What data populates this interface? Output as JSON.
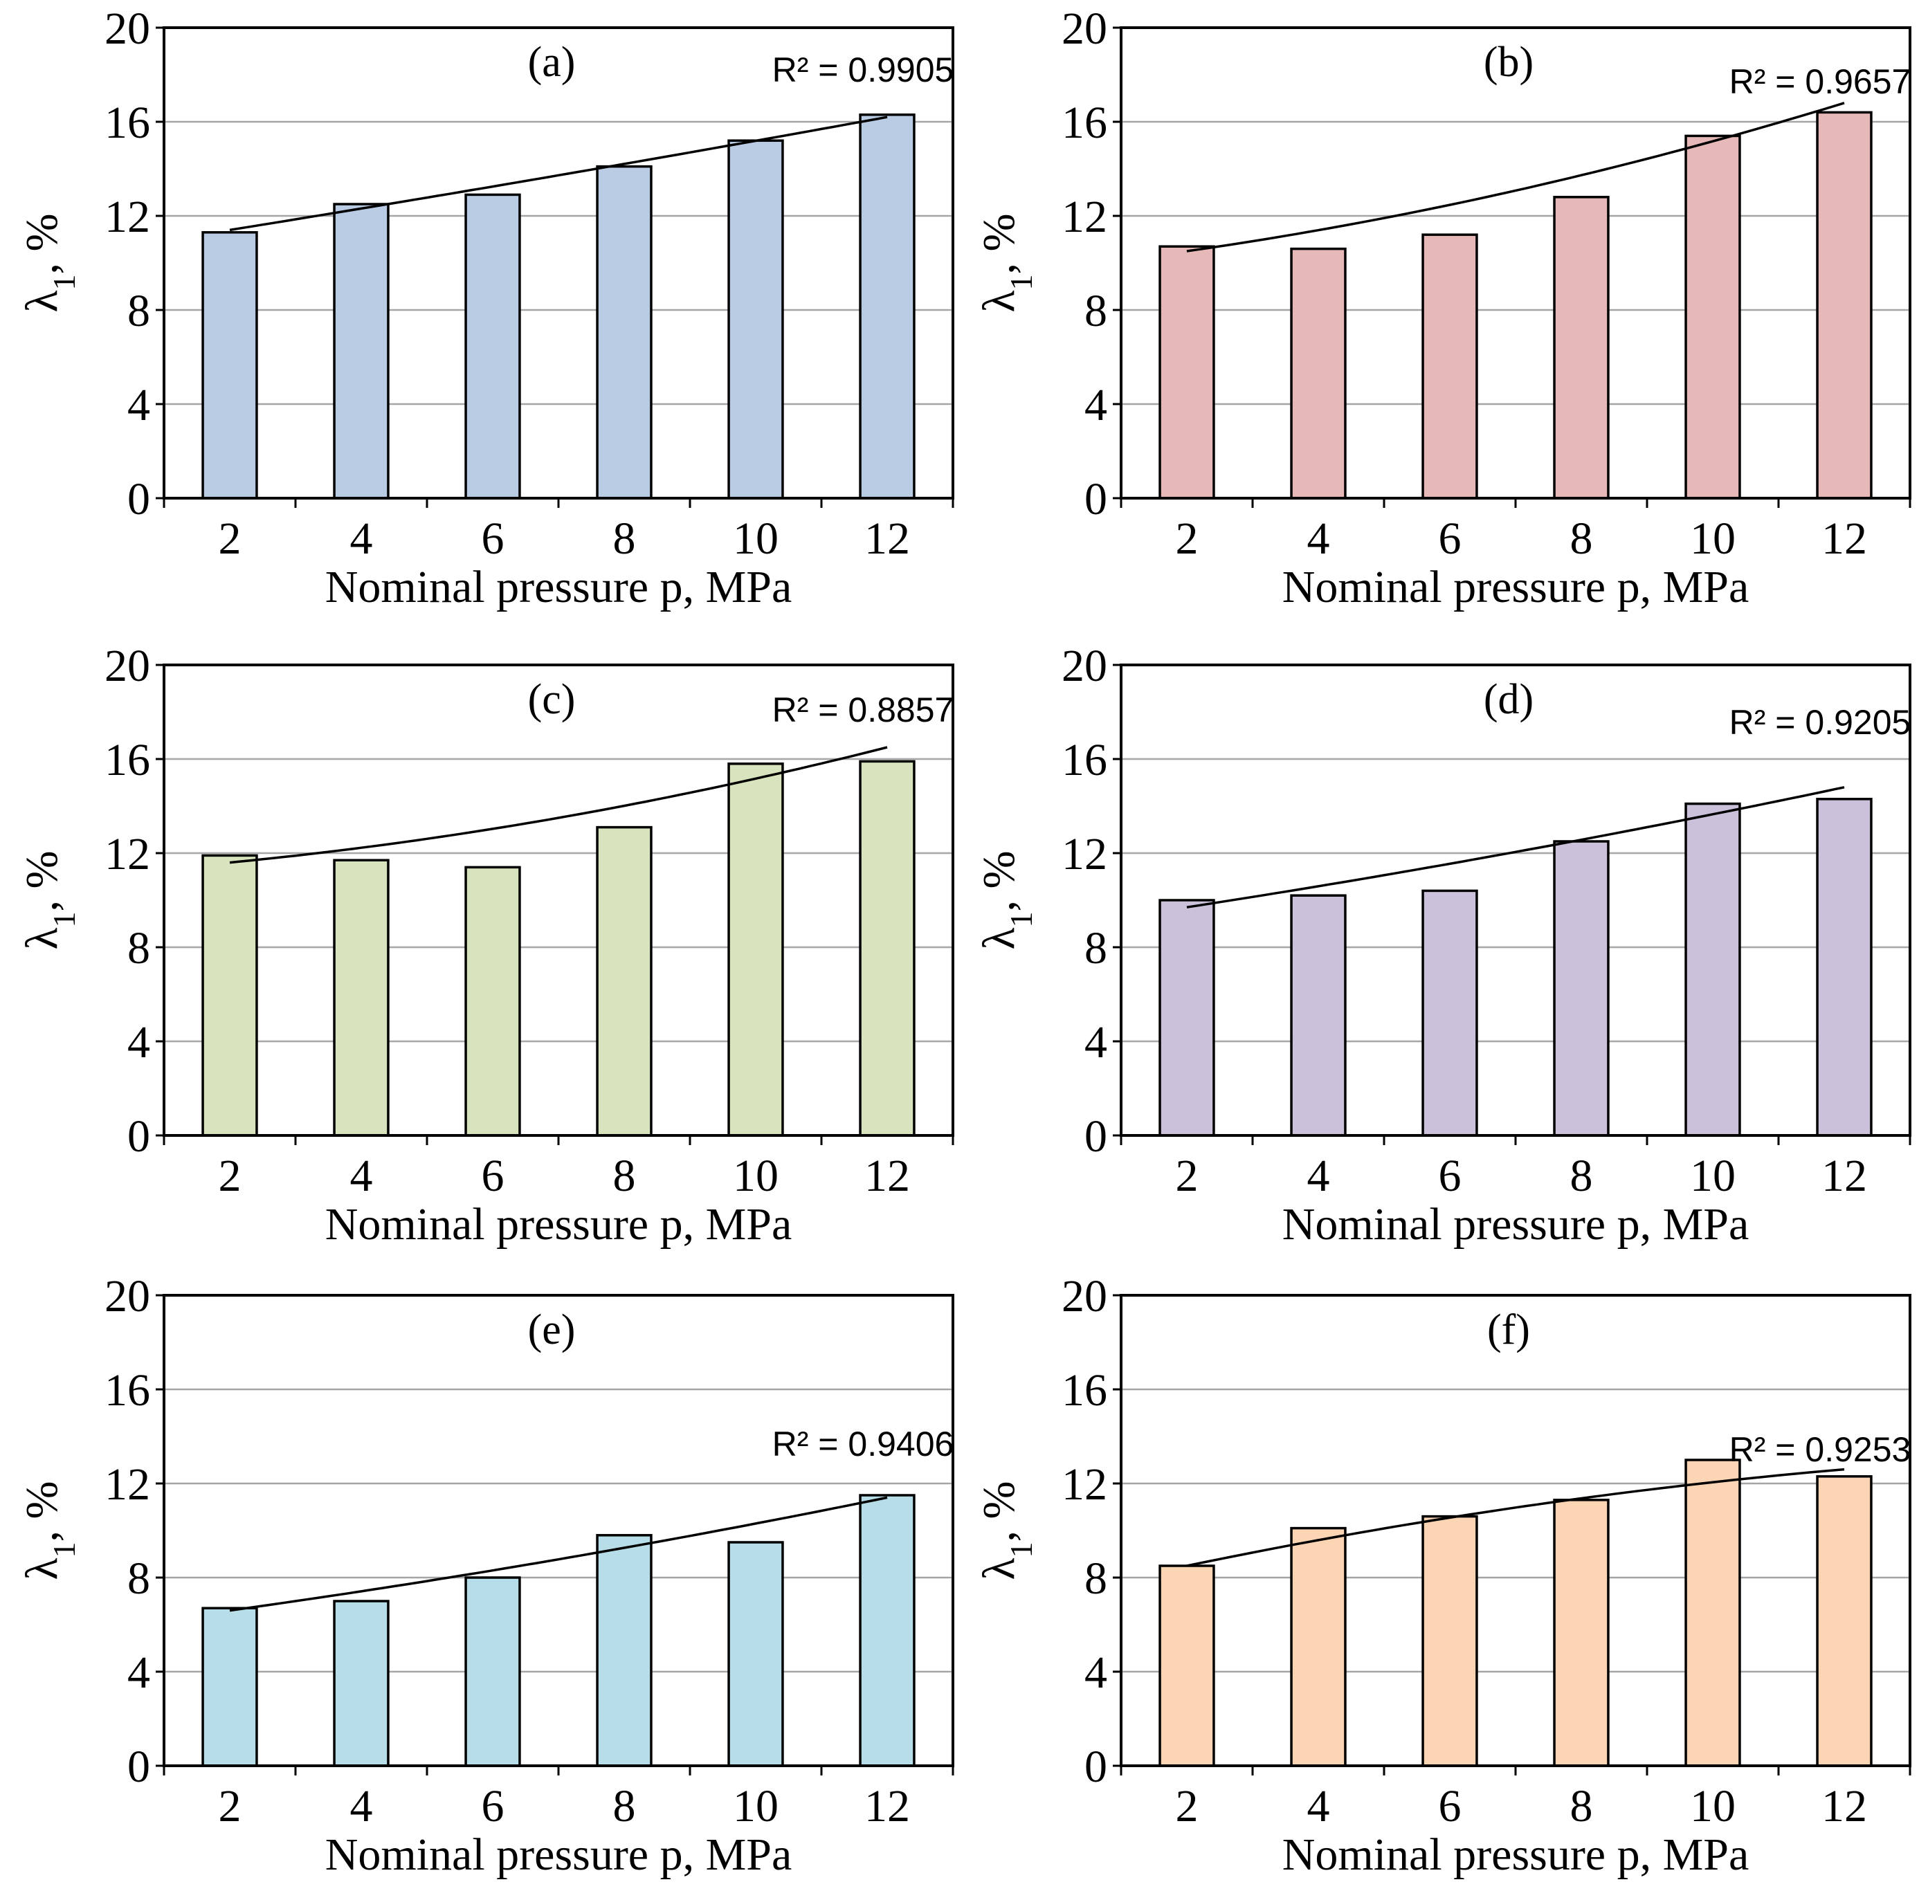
{
  "figure": {
    "y_axis_label": "λ1, %",
    "y_axis_label_base": "λ",
    "y_axis_label_subscript": "1",
    "y_axis_label_suffix": ", %",
    "x_axis_label": "Nominal pressure p, MPa"
  },
  "chart_data": [
    {
      "type": "bar",
      "panel": "(a)",
      "categories": [
        "2",
        "4",
        "6",
        "8",
        "10",
        "12"
      ],
      "values": [
        11.3,
        12.5,
        12.9,
        14.1,
        15.2,
        16.3
      ],
      "trendline": {
        "type": "polynomial",
        "start": 11.4,
        "end": 16.2,
        "curvature": 0.3,
        "r2_label": "R² = 0.9905"
      },
      "bar_color": "#b9cce4",
      "xlabel": "Nominal pressure p, MPa",
      "ylabel": "λ1, %",
      "ylim": [
        0,
        20
      ],
      "yticks": [
        "0",
        "4",
        "8",
        "12",
        "16",
        "20"
      ],
      "grid": true
    },
    {
      "type": "bar",
      "panel": "(b)",
      "categories": [
        "2",
        "4",
        "6",
        "8",
        "10",
        "12"
      ],
      "values": [
        10.7,
        10.6,
        11.2,
        12.8,
        15.4,
        16.4
      ],
      "trendline": {
        "type": "polynomial",
        "start": 10.5,
        "end": 16.8,
        "curvature": 2.3,
        "r2_label": "R² = 0.9657"
      },
      "bar_color": "#e6b9b8",
      "xlabel": "Nominal pressure p, MPa",
      "ylabel": "λ1, %",
      "ylim": [
        0,
        20
      ],
      "yticks": [
        "0",
        "4",
        "8",
        "12",
        "16",
        "20"
      ],
      "grid": true
    },
    {
      "type": "bar",
      "panel": "(c)",
      "categories": [
        "2",
        "4",
        "6",
        "8",
        "10",
        "12"
      ],
      "values": [
        11.9,
        11.7,
        11.4,
        13.1,
        15.8,
        15.9
      ],
      "trendline": {
        "type": "polynomial",
        "start": 11.6,
        "end": 16.5,
        "curvature": 2.2,
        "r2_label": "R² = 0.8857"
      },
      "bar_color": "#d7e4bd",
      "xlabel": "Nominal pressure p, MPa",
      "ylabel": "λ1, %",
      "ylim": [
        0,
        20
      ],
      "yticks": [
        "0",
        "4",
        "8",
        "12",
        "16",
        "20"
      ],
      "grid": true
    },
    {
      "type": "bar",
      "panel": "(d)",
      "categories": [
        "2",
        "4",
        "6",
        "8",
        "10",
        "12"
      ],
      "values": [
        10.0,
        10.2,
        10.4,
        12.5,
        14.1,
        14.3
      ],
      "trendline": {
        "type": "polynomial",
        "start": 9.7,
        "end": 14.8,
        "curvature": 0.8,
        "r2_label": "R² = 0.9205"
      },
      "bar_color": "#ccc1da",
      "xlabel": "Nominal pressure p, MPa",
      "ylabel": "λ1, %",
      "ylim": [
        0,
        20
      ],
      "yticks": [
        "0",
        "4",
        "8",
        "12",
        "16",
        "20"
      ],
      "grid": true
    },
    {
      "type": "bar",
      "panel": "(e)",
      "categories": [
        "2",
        "4",
        "6",
        "8",
        "10",
        "12"
      ],
      "values": [
        6.7,
        7.0,
        8.0,
        9.8,
        9.5,
        11.5
      ],
      "trendline": {
        "type": "polynomial",
        "start": 6.6,
        "end": 11.4,
        "curvature": 0.9,
        "r2_label": "R² = 0.9406"
      },
      "bar_color": "#b7dde8",
      "xlabel": "Nominal pressure p, MPa",
      "ylabel": "λ1, %",
      "ylim": [
        0,
        20
      ],
      "yticks": [
        "0",
        "4",
        "8",
        "12",
        "16",
        "20"
      ],
      "grid": true
    },
    {
      "type": "bar",
      "panel": "(f)",
      "categories": [
        "2",
        "4",
        "6",
        "8",
        "10",
        "12"
      ],
      "values": [
        8.5,
        10.1,
        10.6,
        11.3,
        13.0,
        12.3
      ],
      "trendline": {
        "type": "polynomial",
        "start": 8.5,
        "end": 12.6,
        "curvature": -1.7,
        "r2_label": "R² = 0.9253"
      },
      "bar_color": "#fcd5b5",
      "xlabel": "Nominal pressure p, MPa",
      "ylabel": "λ1, %",
      "ylim": [
        0,
        20
      ],
      "yticks": [
        "0",
        "4",
        "8",
        "12",
        "16",
        "20"
      ],
      "grid": true
    }
  ]
}
